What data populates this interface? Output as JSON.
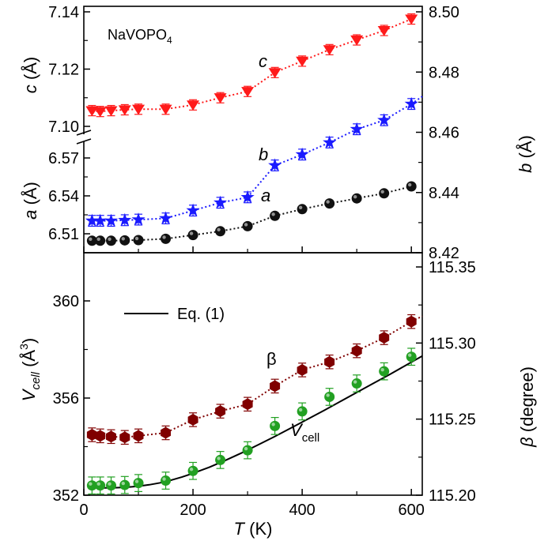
{
  "chart_data": [
    {
      "panel": "top",
      "type": "scatter",
      "annotation": "NaVOPO",
      "annotation_sub": "4",
      "xlim": [
        0,
        620
      ],
      "left_axis": {
        "label_var": "c",
        "label_unit": " (Å)",
        "label2_var": "a",
        "label2_unit": " (Å)",
        "upper_ticks": [
          "7.14",
          "7.12",
          "7.10"
        ],
        "lower_ticks": [
          "6.57",
          "6.54",
          "6.51"
        ],
        "upper_range": [
          7.096,
          7.14
        ],
        "lower_range": [
          6.497,
          6.585
        ]
      },
      "right_axis": {
        "label_var": "b",
        "label_unit": " (Å)",
        "ticks": [
          "8.50",
          "8.48",
          "8.46",
          "8.44",
          "8.42"
        ],
        "range": [
          8.42,
          8.5
        ]
      },
      "series": [
        {
          "name": "c",
          "axis": "left-upper",
          "color": "#ff1a1a",
          "marker": "triangle-down",
          "x": [
            15,
            30,
            50,
            75,
            100,
            150,
            200,
            250,
            300,
            350,
            400,
            450,
            500,
            550,
            600
          ],
          "y": [
            7.1055,
            7.1052,
            7.1055,
            7.1058,
            7.106,
            7.106,
            7.1075,
            7.11,
            7.1122,
            7.1188,
            7.1228,
            7.1268,
            7.1302,
            7.1335,
            7.1375
          ],
          "err": [
            0.0018,
            0.0018,
            0.0018,
            0.0018,
            0.0018,
            0.0018,
            0.0018,
            0.0018,
            0.0018,
            0.0018,
            0.0018,
            0.0018,
            0.0018,
            0.0018,
            0.0018
          ]
        },
        {
          "name": "b",
          "axis": "right",
          "color": "#1a1aff",
          "marker": "star",
          "x": [
            15,
            30,
            50,
            75,
            100,
            150,
            200,
            250,
            300,
            350,
            400,
            450,
            500,
            550,
            600
          ],
          "y": [
            8.4306,
            8.4306,
            8.4306,
            8.4308,
            8.431,
            8.4314,
            8.434,
            8.4366,
            8.4384,
            8.449,
            8.4526,
            8.4566,
            8.461,
            8.464,
            8.4694
          ],
          "err": [
            0.0018,
            0.0018,
            0.0018,
            0.0018,
            0.0018,
            0.0018,
            0.0018,
            0.0018,
            0.0018,
            0.0018,
            0.0018,
            0.0018,
            0.0018,
            0.0018,
            0.0018
          ]
        },
        {
          "name": "a",
          "axis": "left-lower",
          "color": "#111111",
          "marker": "circle",
          "x": [
            15,
            30,
            50,
            75,
            100,
            150,
            200,
            250,
            300,
            350,
            400,
            450,
            500,
            550,
            600
          ],
          "y": [
            6.5045,
            6.5045,
            6.5045,
            6.5048,
            6.505,
            6.506,
            6.509,
            6.512,
            6.516,
            6.5242,
            6.5295,
            6.534,
            6.538,
            6.542,
            6.5475
          ],
          "err": []
        }
      ],
      "series_labels": [
        "c",
        "b",
        "a"
      ]
    },
    {
      "panel": "bottom",
      "type": "scatter",
      "xlabel_var": "T",
      "xlabel_unit": " (K)",
      "xlim": [
        0,
        620
      ],
      "xticks": [
        "0",
        "200",
        "400",
        "600"
      ],
      "left_axis": {
        "label_var": "V",
        "label_sub": "cell",
        "label_unit": " (Å",
        "label_sup": "3",
        "label_close": ")",
        "ticks": [
          "360",
          "356",
          "352"
        ],
        "range": [
          352,
          362
        ]
      },
      "right_axis": {
        "label_var": "β",
        "label_unit": " (degree)",
        "ticks": [
          "115.35",
          "115.30",
          "115.25",
          "115.20"
        ],
        "range": [
          115.2,
          115.355
        ]
      },
      "legend": {
        "label": "Eq. (1)",
        "position": "top-left"
      },
      "series": [
        {
          "name": "β",
          "axis": "right",
          "color": "#800000",
          "marker": "hexagon",
          "x": [
            15,
            30,
            50,
            75,
            100,
            150,
            200,
            250,
            300,
            350,
            400,
            450,
            500,
            550,
            600
          ],
          "y": [
            115.2397,
            115.239,
            115.2385,
            115.238,
            115.239,
            115.241,
            115.2496,
            115.2552,
            115.2598,
            115.2717,
            115.2823,
            115.2876,
            115.2949,
            115.3035,
            115.3141
          ],
          "err": [
            0.0045,
            0.0045,
            0.0045,
            0.0045,
            0.0045,
            0.0045,
            0.0045,
            0.0045,
            0.0045,
            0.0045,
            0.0045,
            0.0045,
            0.0045,
            0.0045,
            0.0045
          ]
        },
        {
          "name": "V",
          "axis": "left",
          "color": "#22a022",
          "marker": "circle",
          "x": [
            15,
            30,
            50,
            75,
            100,
            150,
            200,
            250,
            300,
            350,
            400,
            450,
            500,
            550,
            600
          ],
          "y": [
            352.4,
            352.4,
            352.4,
            352.42,
            352.5,
            352.6,
            353.0,
            353.45,
            353.85,
            354.85,
            355.45,
            356.05,
            356.6,
            357.1,
            357.7
          ],
          "err": [
            0.35,
            0.35,
            0.35,
            0.35,
            0.35,
            0.35,
            0.35,
            0.35,
            0.35,
            0.35,
            0.35,
            0.35,
            0.35,
            0.35,
            0.35
          ]
        }
      ],
      "fit_curve": {
        "name": "Eq. (1)",
        "theta_fit_param": 300,
        "x": [
          15,
          40,
          60,
          80,
          100,
          120,
          140,
          160,
          180,
          200,
          230,
          260,
          290,
          320,
          350,
          380,
          410,
          440,
          470,
          500,
          530,
          560,
          590,
          620
        ],
        "y": [
          352.3,
          352.3,
          352.31,
          352.33,
          352.37,
          352.43,
          352.51,
          352.62,
          352.75,
          352.9,
          353.15,
          353.44,
          353.75,
          354.08,
          354.42,
          354.77,
          355.13,
          355.49,
          355.86,
          356.23,
          356.6,
          356.97,
          357.35,
          357.73
        ]
      },
      "series_labels": [
        "β",
        "V",
        "cell"
      ]
    }
  ]
}
